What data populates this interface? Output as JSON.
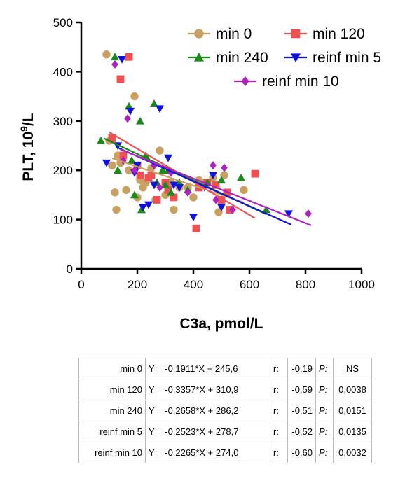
{
  "chart_data": {
    "type": "scatter",
    "title": "",
    "xlabel": "C3a, pmol/L",
    "ylabel_main": "PLT, 10",
    "ylabel_sup": "9",
    "ylabel_tail": "/L",
    "xlim": [
      0,
      1000
    ],
    "ylim": [
      0,
      500
    ],
    "xticks": [
      0,
      200,
      400,
      600,
      800,
      1000
    ],
    "yticks": [
      0,
      100,
      200,
      300,
      400,
      500
    ],
    "grid": false,
    "legend_position": "top-right",
    "series": [
      {
        "name": "min 0",
        "marker": "circle",
        "color": "#c8a060",
        "slope": -0.1911,
        "intercept": 245.6,
        "fit_x": [
          110,
          580
        ],
        "x": [
          90,
          100,
          110,
          120,
          125,
          130,
          140,
          160,
          170,
          190,
          200,
          210,
          220,
          230,
          250,
          265,
          280,
          300,
          320,
          330,
          350,
          380,
          400,
          420,
          440,
          470,
          490,
          500,
          510,
          580
        ],
        "y": [
          435,
          260,
          210,
          155,
          120,
          230,
          215,
          160,
          200,
          350,
          145,
          180,
          165,
          175,
          205,
          140,
          240,
          150,
          175,
          120,
          165,
          165,
          145,
          180,
          175,
          185,
          115,
          140,
          190,
          160
        ]
      },
      {
        "name": "min 120",
        "marker": "square",
        "color": "#f05050",
        "slope": -0.3357,
        "intercept": 310.9,
        "fit_x": [
          100,
          620
        ],
        "x": [
          110,
          140,
          170,
          150,
          200,
          210,
          240,
          250,
          270,
          300,
          310,
          330,
          410,
          420,
          450,
          480,
          500,
          520,
          530,
          620
        ],
        "y": [
          265,
          385,
          430,
          230,
          210,
          190,
          185,
          190,
          140,
          175,
          160,
          145,
          82,
          165,
          175,
          170,
          140,
          155,
          120,
          193
        ]
      },
      {
        "name": "min 240",
        "marker": "triangle",
        "color": "#1a8a1a",
        "slope": -0.2658,
        "intercept": 286.2,
        "fit_x": [
          80,
          660
        ],
        "x": [
          70,
          120,
          130,
          170,
          180,
          190,
          210,
          215,
          230,
          260,
          270,
          290,
          300,
          310,
          320,
          350,
          380,
          450,
          500,
          570,
          660
        ],
        "y": [
          260,
          430,
          200,
          330,
          220,
          150,
          300,
          120,
          230,
          335,
          175,
          200,
          170,
          200,
          155,
          175,
          160,
          175,
          180,
          185,
          120
        ]
      },
      {
        "name": "reinf min 5",
        "marker": "triangle-down",
        "color": "#1010e0",
        "slope": -0.2523,
        "intercept": 278.7,
        "fit_x": [
          130,
          750
        ],
        "x": [
          90,
          130,
          145,
          175,
          190,
          200,
          220,
          240,
          260,
          280,
          310,
          330,
          350,
          400,
          440,
          470,
          500,
          740
        ],
        "y": [
          215,
          250,
          425,
          320,
          195,
          210,
          125,
          130,
          170,
          325,
          225,
          170,
          165,
          105,
          165,
          190,
          125,
          112
        ]
      },
      {
        "name": "reinf min 10",
        "marker": "diamond",
        "color": "#b020c0",
        "slope": -0.2265,
        "intercept": 274.0,
        "fit_x": [
          140,
          820
        ],
        "x": [
          120,
          150,
          165,
          190,
          260,
          280,
          320,
          380,
          470,
          480,
          510,
          540,
          810
        ],
        "y": [
          415,
          220,
          305,
          200,
          210,
          165,
          195,
          155,
          210,
          140,
          205,
          120,
          112
        ]
      }
    ]
  },
  "table": {
    "rows": [
      {
        "name": "min 0",
        "equation": "Y = -0,1911*X + 245,6",
        "r_label": "r:",
        "r": "-0,19",
        "p_label": "P:",
        "p": "NS"
      },
      {
        "name": "min 120",
        "equation": "Y = -0,3357*X + 310,9",
        "r_label": "r:",
        "r": "-0,59",
        "p_label": "P:",
        "p": "0,0038"
      },
      {
        "name": "min 240",
        "equation": "Y = -0,2658*X + 286,2",
        "r_label": "r:",
        "r": "-0,51",
        "p_label": "P:",
        "p": "0,0151"
      },
      {
        "name": "reinf min 5",
        "equation": "Y = -0,2523*X + 278,7",
        "r_label": "r:",
        "r": "-0,52",
        "p_label": "P:",
        "p": "0,0135"
      },
      {
        "name": "reinf min 10",
        "equation": "Y = -0,2265*X + 274,0",
        "r_label": "r:",
        "r": "-0,60",
        "p_label": "P:",
        "p": "0,0032"
      }
    ]
  }
}
